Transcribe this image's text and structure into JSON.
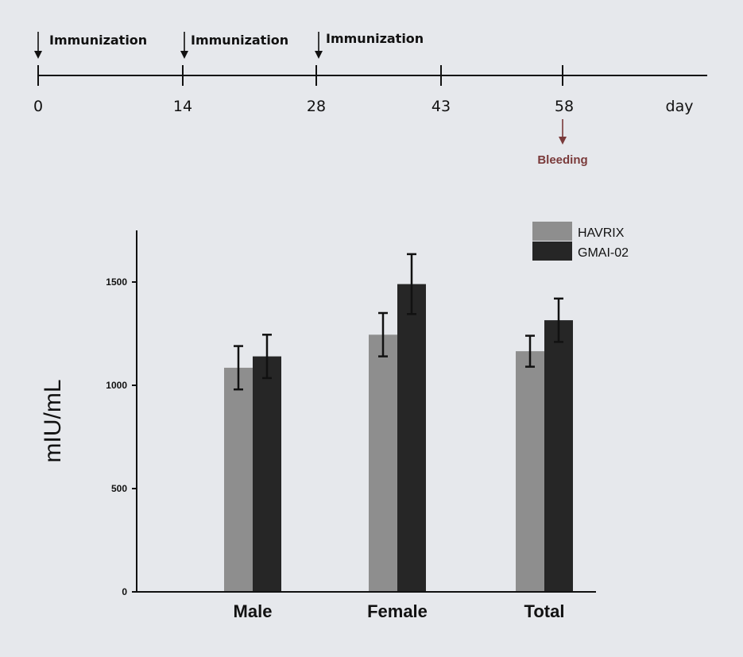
{
  "timeline": {
    "events": [
      {
        "day": "0",
        "label": "Immunization"
      },
      {
        "day": "14",
        "label": "Immunization"
      },
      {
        "day": "28",
        "label": "Immunization"
      }
    ],
    "ticks": [
      "0",
      "14",
      "28",
      "43",
      "58"
    ],
    "unit_label": "day",
    "bleeding": {
      "day": "58",
      "label": "Bleeding"
    },
    "colors": {
      "line": "#111111",
      "bleeding": "#7a3a3a"
    }
  },
  "chart_data": {
    "type": "bar",
    "categories": [
      "Male",
      "Female",
      "Total"
    ],
    "series": [
      {
        "name": "HAVRIX",
        "values": [
          1085,
          1245,
          1165
        ],
        "errors": [
          105,
          105,
          75
        ],
        "color": "#8e8e8e"
      },
      {
        "name": "GMAI-02",
        "values": [
          1140,
          1490,
          1315
        ],
        "errors": [
          105,
          145,
          105
        ],
        "color": "#262626"
      }
    ],
    "title": "",
    "xlabel": "",
    "ylabel": "mIU/mL",
    "ylim": [
      0,
      1700
    ],
    "yticks": [
      0,
      500,
      1000,
      1500
    ],
    "grid": false,
    "legend_position": "top-right"
  }
}
